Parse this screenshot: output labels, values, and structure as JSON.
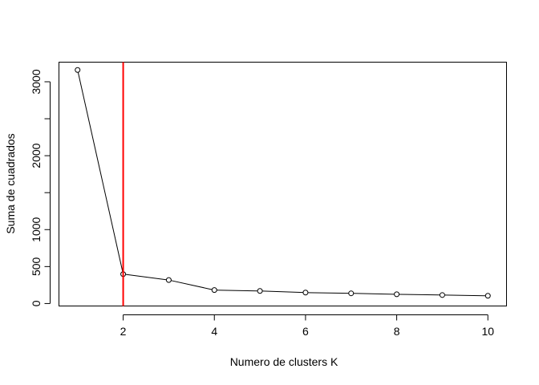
{
  "chart_data": {
    "type": "line",
    "title": "",
    "xlabel": "Numero de clusters K",
    "ylabel": "Suma de cuadrados",
    "x": [
      1,
      2,
      3,
      4,
      5,
      6,
      7,
      8,
      9,
      10
    ],
    "series": [
      {
        "values": [
          3160,
          398,
          318,
          182,
          170,
          148,
          138,
          125,
          115,
          105
        ]
      }
    ],
    "xlim": [
      0.6,
      10.4
    ],
    "ylim": [
      -28,
      3260
    ],
    "xticks": [
      2,
      4,
      6,
      8,
      10
    ],
    "xtick_labels": [
      "2",
      "4",
      "6",
      "8",
      "10"
    ],
    "yticks": [
      0,
      500,
      1000,
      2000,
      3000
    ],
    "ytick_labels": [
      "0",
      "500",
      "1000",
      "2000",
      "3000"
    ],
    "yticks_minor": [
      1500,
      2500
    ],
    "vline": {
      "x": 2,
      "color": "#ff0000"
    },
    "line_color": "#000000",
    "marker": "open-circle",
    "grid": false,
    "legend": "none"
  }
}
